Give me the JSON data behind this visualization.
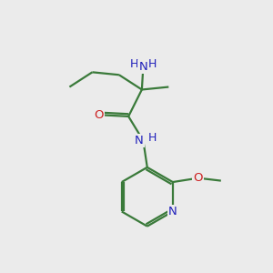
{
  "bg_color": "#ebebeb",
  "bond_color": "#3a7a3a",
  "N_color": "#2020bb",
  "O_color": "#cc2020",
  "line_width": 1.6,
  "figsize": [
    3.0,
    3.0
  ],
  "dpi": 100,
  "xlim": [
    0,
    10
  ],
  "ylim": [
    0,
    10
  ]
}
